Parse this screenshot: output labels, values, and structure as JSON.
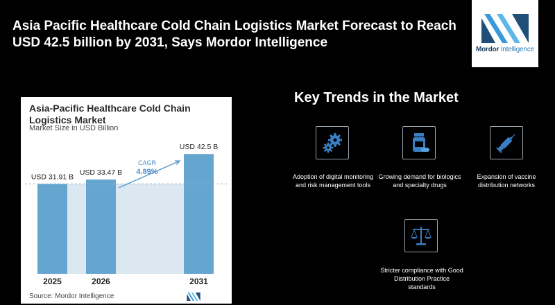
{
  "headline": "Asia Pacific Healthcare Cold Chain Logistics Market Forecast to Reach USD 42.5 billion by 2031, Says Mordor Intelligence",
  "logo": {
    "brand_bold": "Mordor",
    "brand_light": "Intelligence"
  },
  "chart_card": {
    "title_line1": "Asia-Pacific Healthcare Cold Chain",
    "title_line2": "Logistics Market",
    "subtitle": "Market Size in USD Billion",
    "source": "Source: Mordor Intelligence"
  },
  "chart_data": {
    "type": "bar",
    "categories": [
      "2025",
      "2026",
      "2031"
    ],
    "values": [
      31.91,
      33.47,
      42.5
    ],
    "data_labels": [
      "USD 31.91 B",
      "USD 33.47 B",
      "USD 42.5 B"
    ],
    "cagr_label": "CAGR",
    "cagr_value": "4.89%",
    "title": "Asia-Pacific Healthcare Cold Chain Logistics Market",
    "subtitle": "Market Size in USD Billion",
    "ylim": [
      0,
      46
    ],
    "grid": false,
    "colors": {
      "bar": "#64a6cf",
      "band": "#dbe7f1",
      "arrow": "#5b9fd0",
      "cagr_text": "#4a8dc8"
    }
  },
  "key_trends": {
    "title": "Key Trends in the Market",
    "items": [
      {
        "icon": "gears-icon",
        "text": "Adoption of digital monitoring and risk management tools"
      },
      {
        "icon": "pill-bottle-icon",
        "text": "Growing demand for biologics and specialty drugs"
      },
      {
        "icon": "syringe-icon",
        "text": "Expansion of vaccine distribution networks"
      },
      {
        "icon": "scales-icon",
        "text": "Stricter compliance with Good Distribution Practice standards"
      }
    ]
  }
}
